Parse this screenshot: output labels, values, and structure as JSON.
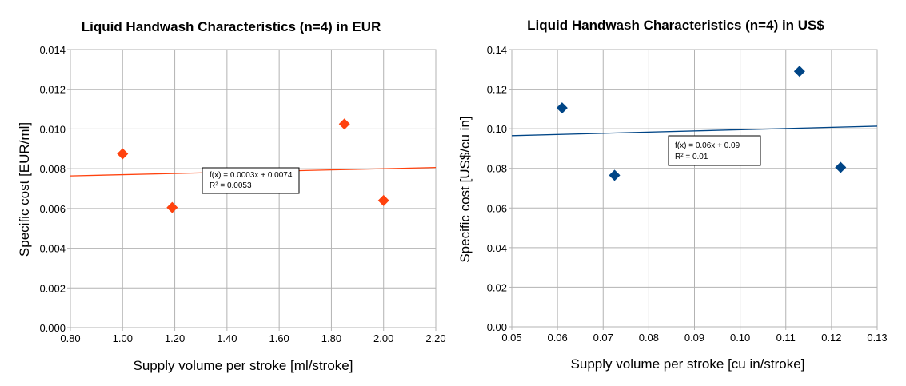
{
  "chart_data": [
    {
      "type": "scatter",
      "title": "Liquid Handwash Characteristics (n=4) in EUR",
      "xlabel": "Supply volume per stroke [ml/stroke]",
      "ylabel": "Specific cost [EUR/ml]",
      "xlim": [
        0.8,
        2.2
      ],
      "ylim": [
        0,
        0.014
      ],
      "xticks": [
        "0.80",
        "1.00",
        "1.20",
        "1.40",
        "1.60",
        "1.80",
        "2.00",
        "2.20"
      ],
      "yticks": [
        "0.000",
        "0.002",
        "0.004",
        "0.006",
        "0.008",
        "0.010",
        "0.012",
        "0.014"
      ],
      "grid": true,
      "marker_color": "#ff420e",
      "trend_color": "#ff420e",
      "series": [
        {
          "x": [
            1.0,
            1.19,
            1.85,
            2.0
          ],
          "y": [
            0.00875,
            0.00605,
            0.01025,
            0.0064
          ]
        }
      ],
      "trendline": {
        "slope": 0.0003,
        "intercept": 0.0074
      },
      "annotation": {
        "line1": "f(x) = 0.0003x + 0.0074",
        "line2": "R² = 0.0053"
      }
    },
    {
      "type": "scatter",
      "title": "Liquid Handwash Characteristics (n=4) in US$",
      "xlabel": "Supply volume per stroke [cu in/stroke]",
      "ylabel": "Specific cost [US$/cu in]",
      "xlim": [
        0.05,
        0.13
      ],
      "ylim": [
        0,
        0.14
      ],
      "xticks": [
        "0.05",
        "0.06",
        "0.07",
        "0.08",
        "0.09",
        "0.10",
        "0.11",
        "0.12",
        "0.13"
      ],
      "yticks": [
        "0.00",
        "0.02",
        "0.04",
        "0.06",
        "0.08",
        "0.10",
        "0.12",
        "0.14"
      ],
      "grid": true,
      "marker_color": "#004586",
      "trend_color": "#004586",
      "series": [
        {
          "x": [
            0.061,
            0.0725,
            0.113,
            0.122
          ],
          "y": [
            0.1105,
            0.0765,
            0.129,
            0.0805
          ]
        }
      ],
      "trendline": {
        "slope": 0.06,
        "intercept": 0.0935
      },
      "annotation": {
        "line1": "f(x) = 0.06x + 0.09",
        "line2": "R² = 0.01"
      }
    }
  ]
}
